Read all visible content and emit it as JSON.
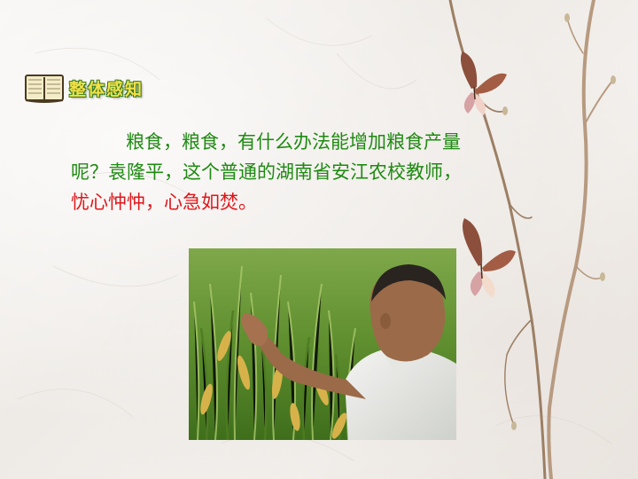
{
  "section": {
    "title": "整体感知",
    "icon": "open-book-icon"
  },
  "paragraph": {
    "line1": "粮食，粮食，有什么办法能增加粮食产量",
    "line2": "呢？袁隆平，这个普通的湖南省安江农校教师，",
    "line3": "忧心忡忡，心急如焚。"
  },
  "colors": {
    "text_green": "#1f8a12",
    "text_red": "#e0161a",
    "title_yellow": "#f4e04a"
  }
}
